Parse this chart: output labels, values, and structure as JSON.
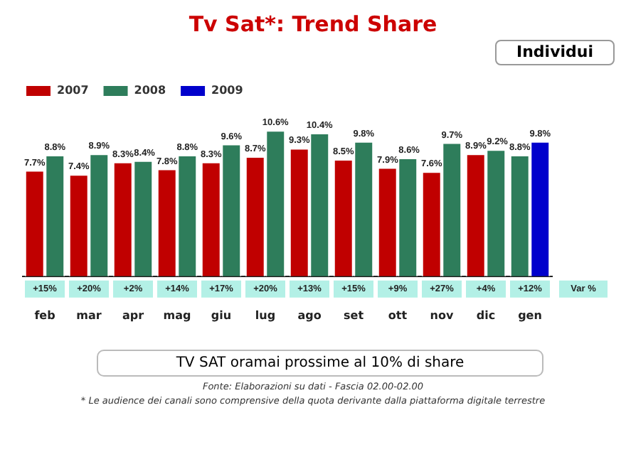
{
  "chart_data": {
    "type": "bar",
    "title": "Tv Sat*: Trend Share",
    "subtitle": "Individui",
    "categories": [
      "feb",
      "mar",
      "apr",
      "mag",
      "giu",
      "lug",
      "ago",
      "set",
      "ott",
      "nov",
      "dic",
      "gen"
    ],
    "series": [
      {
        "name": "2007",
        "color": "#c00000",
        "values": [
          7.7,
          7.4,
          8.3,
          7.8,
          8.3,
          8.7,
          9.3,
          8.5,
          7.9,
          7.6,
          8.9,
          null
        ],
        "value_labels": [
          "7.7%",
          "7.4%",
          "8.3%",
          "7.8%",
          "8.3%",
          "8.7%",
          "9.3%",
          "8.5%",
          "7.9%",
          "7.6%",
          "8.9%",
          null
        ]
      },
      {
        "name": "2008",
        "color": "#2e7d5b",
        "values": [
          8.8,
          8.9,
          8.4,
          8.8,
          9.6,
          10.6,
          10.4,
          9.8,
          8.6,
          9.7,
          9.2,
          8.8
        ],
        "value_labels": [
          "8.8%",
          "8.9%",
          "8.4%",
          "8.8%",
          "9.6%",
          "10.6%",
          "10.4%",
          "9.8%",
          "8.6%",
          "9.7%",
          "9.2%",
          "8.8%"
        ]
      },
      {
        "name": "2009",
        "color": "#0000cc",
        "values": [
          null,
          null,
          null,
          null,
          null,
          null,
          null,
          null,
          null,
          null,
          null,
          9.8
        ],
        "value_labels": [
          null,
          null,
          null,
          null,
          null,
          null,
          null,
          null,
          null,
          null,
          null,
          "9.8%"
        ]
      }
    ],
    "legend": "top left",
    "grid": false,
    "annotations": [
      {
        "text": "+15%",
        "x": "feb"
      },
      {
        "text": "+20%",
        "x": "mar"
      },
      {
        "text": "+2%",
        "x": "apr"
      },
      {
        "text": "+14%",
        "x": "mag"
      },
      {
        "text": "+17%",
        "x": "giu"
      },
      {
        "text": "+20%",
        "x": "lug"
      },
      {
        "text": "+13%",
        "x": "ago"
      },
      {
        "text": "+15%",
        "x": "set"
      },
      {
        "text": "+9%",
        "x": "ott"
      },
      {
        "text": "+27%",
        "x": "nov"
      },
      {
        "text": "+4%",
        "x": "dic"
      },
      {
        "text": "+12%",
        "x": "gen"
      },
      "Var %",
      "TV SAT oramai prossime al 10% di share",
      "Fonte: Elaborazioni su dati - Fascia 02.00-02.00",
      "* Le audience dei canali sono comprensive della quota derivante dalla piattaforma digitale terrestre"
    ]
  }
}
